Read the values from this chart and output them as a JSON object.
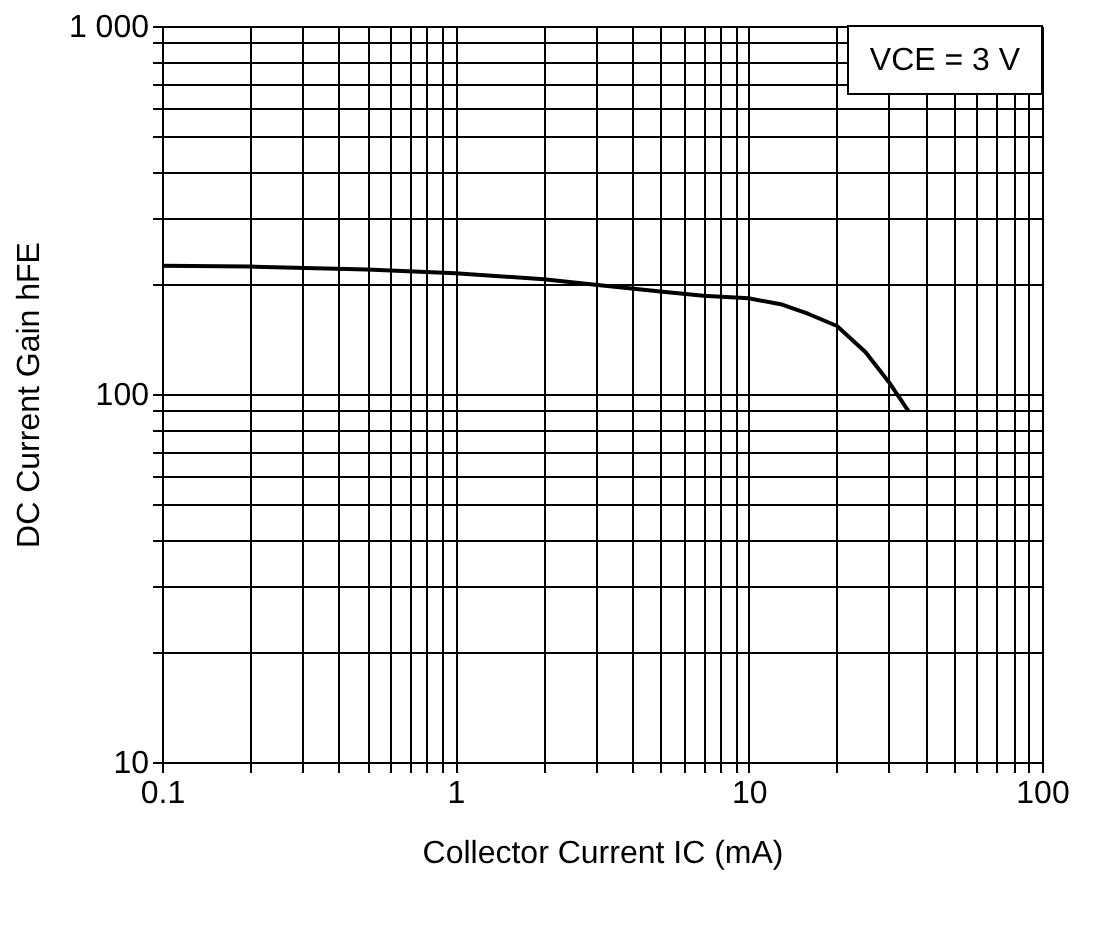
{
  "chart_data": {
    "type": "line",
    "xlabel": "Collector Current  IC (mA)",
    "ylabel": "DC Current Gain  hFE",
    "annotations": [
      "VCE = 3 V"
    ],
    "x": [
      0.1,
      0.2,
      0.5,
      1,
      2,
      3,
      5,
      7,
      10,
      13,
      16,
      20,
      25,
      30,
      35
    ],
    "series": [
      {
        "color": "#000000",
        "values": [
          223,
          222,
          218,
          213,
          205,
          198,
          190,
          185,
          182,
          175,
          165,
          153,
          130,
          108,
          90
        ]
      }
    ],
    "log": "xy",
    "grid": true,
    "marker": "none",
    "line_style": "solid",
    "xlim": [
      0.1,
      100
    ],
    "ylim": [
      10,
      1000
    ],
    "xticks": [
      0.1,
      {
        "value": 0.2,
        "label": null
      },
      {
        "value": 0.3,
        "label": null
      },
      {
        "value": 0.4,
        "label": null
      },
      {
        "value": 0.5,
        "label": null
      },
      {
        "value": 0.6,
        "label": null
      },
      {
        "value": 0.7,
        "label": null
      },
      {
        "value": 0.8,
        "label": null
      },
      {
        "value": 0.9,
        "label": null
      },
      1,
      {
        "value": 2,
        "label": null
      },
      {
        "value": 3,
        "label": null
      },
      {
        "value": 4,
        "label": null
      },
      {
        "value": 5,
        "label": null
      },
      {
        "value": 6,
        "label": null
      },
      {
        "value": 7,
        "label": null
      },
      {
        "value": 8,
        "label": null
      },
      {
        "value": 9,
        "label": null
      },
      10,
      {
        "value": 20,
        "label": null
      },
      {
        "value": 30,
        "label": null
      },
      {
        "value": 40,
        "label": null
      },
      {
        "value": 50,
        "label": null
      },
      {
        "value": 60,
        "label": null
      },
      {
        "value": 70,
        "label": null
      },
      {
        "value": 80,
        "label": null
      },
      {
        "value": 90,
        "label": null
      },
      100
    ],
    "yticks": [
      10,
      {
        "value": 20,
        "label": null
      },
      {
        "value": 30,
        "label": null
      },
      {
        "value": 40,
        "label": null
      },
      {
        "value": 50,
        "label": null
      },
      {
        "value": 60,
        "label": null
      },
      {
        "value": 70,
        "label": null
      },
      {
        "value": 80,
        "label": null
      },
      {
        "value": 90,
        "label": null
      },
      100,
      {
        "value": 200,
        "label": null
      },
      {
        "value": 300,
        "label": null
      },
      {
        "value": 400,
        "label": null
      },
      {
        "value": 500,
        "label": null
      },
      {
        "value": 600,
        "label": null
      },
      {
        "value": 700,
        "label": null
      },
      {
        "value": 800,
        "label": null
      },
      {
        "value": 900,
        "label": null
      },
      {
        "value": 1000,
        "label": "1 000"
      }
    ]
  }
}
